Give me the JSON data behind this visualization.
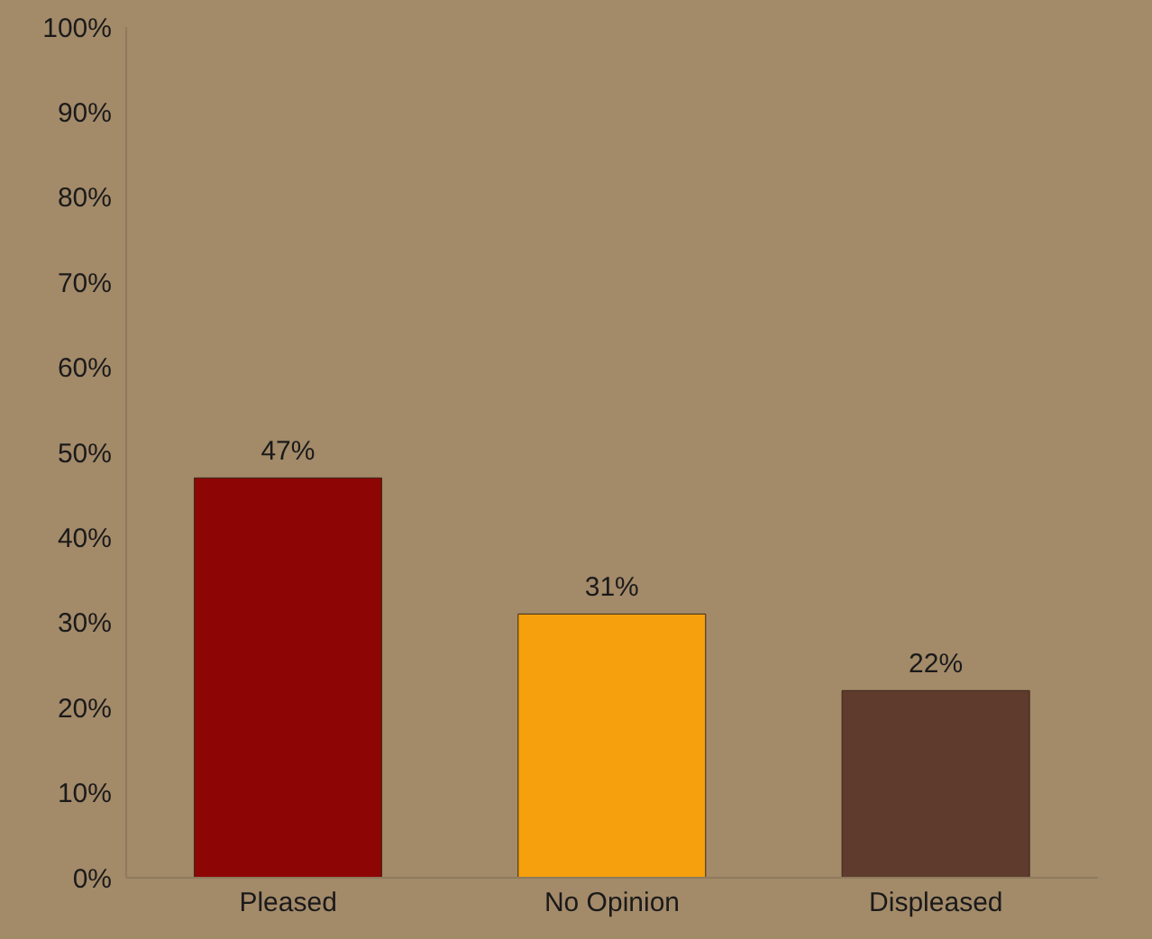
{
  "chart_data": {
    "type": "bar",
    "categories": [
      "Pleased",
      "No Opinion",
      "Displeased"
    ],
    "values": [
      47,
      31,
      22
    ],
    "colors": [
      "#8e0505",
      "#f5a00c",
      "#5e3b2c"
    ],
    "value_labels": [
      "47%",
      "31%",
      "22%"
    ],
    "ylim": [
      0,
      100
    ],
    "yticks": [
      {
        "value": 0,
        "label": "0%"
      },
      {
        "value": 10,
        "label": "10%"
      },
      {
        "value": 20,
        "label": "20%"
      },
      {
        "value": 30,
        "label": "30%"
      },
      {
        "value": 40,
        "label": "40%"
      },
      {
        "value": 50,
        "label": "50%"
      },
      {
        "value": 60,
        "label": "60%"
      },
      {
        "value": 70,
        "label": "70%"
      },
      {
        "value": 80,
        "label": "80%"
      },
      {
        "value": 90,
        "label": "90%"
      },
      {
        "value": 100,
        "label": "100%"
      }
    ],
    "grid": false,
    "legend": false
  }
}
